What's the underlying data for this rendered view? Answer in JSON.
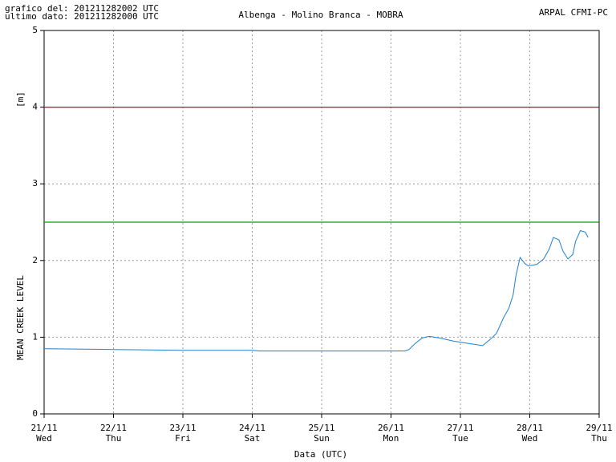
{
  "chart_data": {
    "type": "line",
    "header_left": [
      "grafico del: 201211282002 UTC",
      "ultimo dato: 201211282000 UTC"
    ],
    "title": "Albenga - Molino Branca - MOBRA",
    "header_right": "ARPAL CFMI-PC",
    "y_label": "MEAN CREEK LEVEL",
    "y_unit": "[m]",
    "x_label": "Data (UTC)",
    "xlim": [
      21,
      29
    ],
    "xticks": [
      {
        "value": 21,
        "label": "21/11"
      },
      {
        "value": 22,
        "label": "22/11"
      },
      {
        "value": 23,
        "label": "23/11"
      },
      {
        "value": 24,
        "label": "24/11"
      },
      {
        "value": 25,
        "label": "25/11"
      },
      {
        "value": 26,
        "label": "26/11"
      },
      {
        "value": 27,
        "label": "27/11"
      },
      {
        "value": 28,
        "label": "28/11"
      },
      {
        "value": 29,
        "label": "29/11"
      }
    ],
    "xtick_weekdays": [
      "Wed",
      "Thu",
      "Fri",
      "Sat",
      "Sun",
      "Mon",
      "Tue",
      "Wed",
      "Thu"
    ],
    "ylim": [
      0,
      5
    ],
    "yticks": [
      0,
      1,
      2,
      3,
      4,
      5
    ],
    "grid": true,
    "thresholds": [
      {
        "value": 4,
        "color": "#e00000"
      },
      {
        "value": 2.5,
        "color": "#00a000"
      }
    ],
    "series": [
      {
        "color": "#1e7fd0",
        "x": [
          21,
          22,
          23,
          24,
          24.1,
          25,
          26,
          26.2,
          26.26,
          26.35,
          26.45,
          26.55,
          26.7,
          26.9,
          27.1,
          27.32,
          27.44,
          27.52,
          27.62,
          27.7,
          27.76,
          27.8,
          27.86,
          27.93,
          27.98,
          28.1,
          28.2,
          28.28,
          28.34,
          28.42,
          28.48,
          28.55,
          28.62,
          28.66,
          28.73,
          28.8,
          28.84
        ],
        "values": [
          0.85,
          0.84,
          0.83,
          0.83,
          0.82,
          0.82,
          0.82,
          0.82,
          0.84,
          0.92,
          0.99,
          1.01,
          0.99,
          0.95,
          0.92,
          0.89,
          0.98,
          1.05,
          1.25,
          1.38,
          1.55,
          1.8,
          2.04,
          1.96,
          1.93,
          1.95,
          2.02,
          2.15,
          2.3,
          2.27,
          2.12,
          2.02,
          2.08,
          2.25,
          2.39,
          2.37,
          2.3
        ]
      }
    ]
  }
}
